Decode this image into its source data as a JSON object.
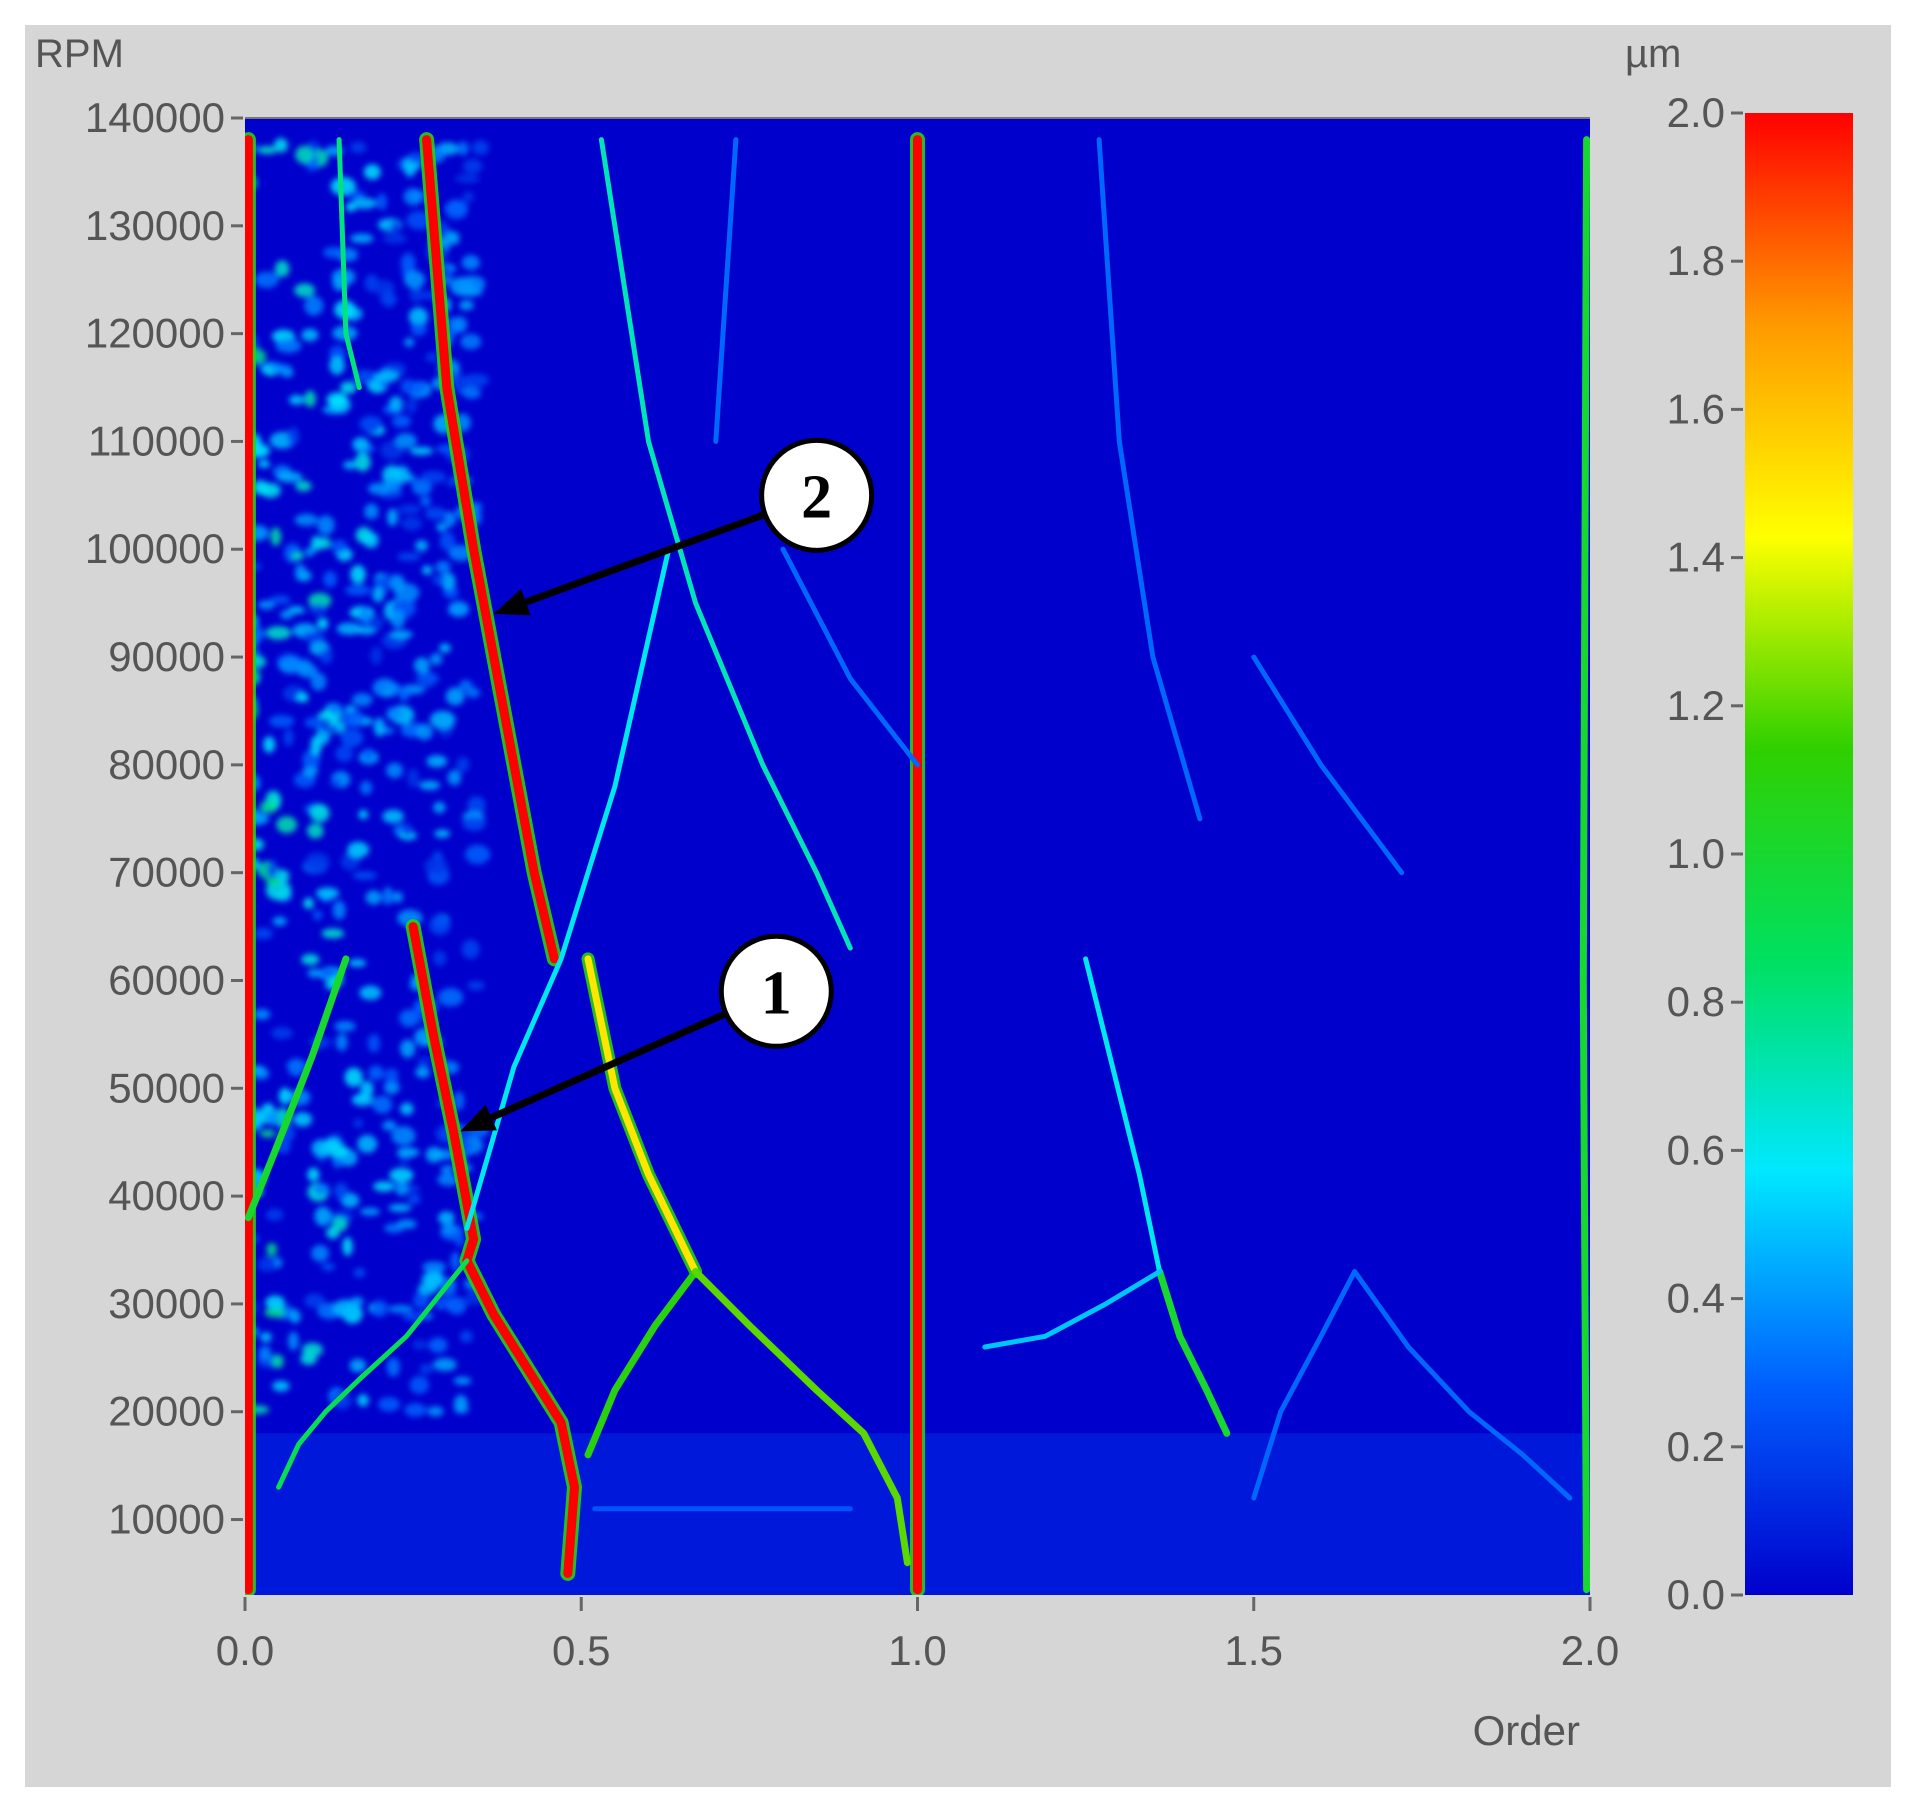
{
  "chart_data": {
    "type": "heatmap",
    "title": "",
    "xlabel": "Order",
    "ylabel": "RPM",
    "colorbar_label": "µm",
    "xlim": [
      0.0,
      2.0
    ],
    "ylim": [
      3000,
      140000
    ],
    "x_ticks": [
      "0.0",
      "0.5",
      "1.0",
      "1.5",
      "2.0"
    ],
    "x_tick_values": [
      0.0,
      0.5,
      1.0,
      1.5,
      2.0
    ],
    "y_ticks": [
      "140000",
      "130000",
      "120000",
      "110000",
      "100000",
      "90000",
      "80000",
      "70000",
      "60000",
      "50000",
      "40000",
      "30000",
      "20000",
      "10000"
    ],
    "y_tick_values": [
      140000,
      130000,
      120000,
      110000,
      100000,
      90000,
      80000,
      70000,
      60000,
      50000,
      40000,
      30000,
      20000,
      10000
    ],
    "colorbar": {
      "range": [
        0.0,
        2.0
      ],
      "ticks": [
        "2.0",
        "1.8",
        "1.6",
        "1.4",
        "1.2",
        "1.0",
        "0.8",
        "0.6",
        "0.4",
        "0.2",
        "0.0"
      ],
      "tick_values": [
        2.0,
        1.8,
        1.6,
        1.4,
        1.2,
        1.0,
        0.8,
        0.6,
        0.4,
        0.2,
        0.0
      ],
      "colors": [
        "#0000cc",
        "#0060ff",
        "#00e8ff",
        "#00e060",
        "#30d000",
        "#ffff00",
        "#ff9900",
        "#ff0000"
      ]
    },
    "background_level": 0.05,
    "traces": [
      {
        "points": [
          [
            0.005,
            3500
          ],
          [
            0.005,
            138000
          ]
        ],
        "level": 2.0
      },
      {
        "points": [
          [
            1.0,
            3500
          ],
          [
            1.0,
            138000
          ]
        ],
        "level": 2.0
      },
      {
        "points": [
          [
            1.995,
            3500
          ],
          [
            1.99,
            60000
          ],
          [
            1.995,
            138000
          ]
        ],
        "level": 1.0
      },
      {
        "points": [
          [
            0.27,
            138000
          ],
          [
            0.3,
            115000
          ],
          [
            0.34,
            100000
          ],
          [
            0.37,
            90000
          ],
          [
            0.4,
            80000
          ],
          [
            0.43,
            70000
          ],
          [
            0.46,
            62000
          ]
        ],
        "level": 2.0
      },
      {
        "points": [
          [
            0.25,
            65000
          ],
          [
            0.28,
            55000
          ],
          [
            0.31,
            46000
          ],
          [
            0.34,
            36000
          ],
          [
            0.33,
            34000
          ],
          [
            0.37,
            29000
          ],
          [
            0.42,
            24000
          ],
          [
            0.47,
            19000
          ],
          [
            0.49,
            13000
          ],
          [
            0.48,
            5000
          ]
        ],
        "level": 2.0
      },
      {
        "points": [
          [
            0.51,
            62000
          ],
          [
            0.55,
            50000
          ],
          [
            0.6,
            42000
          ],
          [
            0.67,
            33000
          ]
        ],
        "level": 1.5
      },
      {
        "points": [
          [
            0.33,
            34000
          ],
          [
            0.24,
            27000
          ],
          [
            0.17,
            23000
          ],
          [
            0.12,
            20000
          ],
          [
            0.08,
            17000
          ],
          [
            0.05,
            13000
          ]
        ],
        "level": 0.9
      },
      {
        "points": [
          [
            0.67,
            33000
          ],
          [
            0.61,
            28000
          ],
          [
            0.55,
            22000
          ],
          [
            0.51,
            16000
          ]
        ],
        "level": 1.1
      },
      {
        "points": [
          [
            0.67,
            33000
          ],
          [
            0.75,
            28000
          ],
          [
            0.85,
            22000
          ],
          [
            0.92,
            18000
          ],
          [
            0.97,
            12000
          ],
          [
            0.985,
            6000
          ]
        ],
        "level": 1.2
      },
      {
        "points": [
          [
            0.53,
            138000
          ],
          [
            0.6,
            110000
          ],
          [
            0.67,
            95000
          ],
          [
            0.77,
            80000
          ],
          [
            0.85,
            70000
          ],
          [
            0.9,
            63000
          ]
        ],
        "level": 0.7
      },
      {
        "points": [
          [
            0.33,
            37000
          ],
          [
            0.4,
            52000
          ],
          [
            0.47,
            62000
          ],
          [
            0.55,
            78000
          ],
          [
            0.63,
            100000
          ]
        ],
        "level": 0.6
      },
      {
        "points": [
          [
            0.005,
            38000
          ],
          [
            0.05,
            45000
          ],
          [
            0.1,
            53000
          ],
          [
            0.15,
            62000
          ]
        ],
        "level": 1.0
      },
      {
        "points": [
          [
            0.14,
            138000
          ],
          [
            0.15,
            120000
          ],
          [
            0.17,
            115000
          ]
        ],
        "level": 0.8
      },
      {
        "points": [
          [
            1.36,
            33000
          ],
          [
            1.39,
            27000
          ],
          [
            1.43,
            22000
          ],
          [
            1.46,
            18000
          ]
        ],
        "level": 1.0
      },
      {
        "points": [
          [
            1.25,
            62000
          ],
          [
            1.29,
            52000
          ],
          [
            1.33,
            42000
          ],
          [
            1.36,
            33000
          ]
        ],
        "level": 0.6
      },
      {
        "points": [
          [
            1.36,
            33000
          ],
          [
            1.28,
            30000
          ],
          [
            1.19,
            27000
          ],
          [
            1.1,
            26000
          ]
        ],
        "level": 0.5
      },
      {
        "points": [
          [
            1.65,
            33000
          ],
          [
            1.6,
            27000
          ],
          [
            1.54,
            20000
          ],
          [
            1.5,
            12000
          ]
        ],
        "level": 0.3
      },
      {
        "points": [
          [
            1.65,
            33000
          ],
          [
            1.73,
            26000
          ],
          [
            1.82,
            20000
          ],
          [
            1.9,
            16000
          ],
          [
            1.97,
            12000
          ]
        ],
        "level": 0.3
      },
      {
        "points": [
          [
            0.73,
            138000
          ],
          [
            0.7,
            110000
          ]
        ],
        "level": 0.3
      },
      {
        "points": [
          [
            1.27,
            138000
          ],
          [
            1.3,
            110000
          ]
        ],
        "level": 0.3
      },
      {
        "points": [
          [
            0.8,
            100000
          ],
          [
            0.9,
            88000
          ],
          [
            1.0,
            80000
          ]
        ],
        "level": 0.3
      },
      {
        "points": [
          [
            1.3,
            110000
          ],
          [
            1.35,
            90000
          ],
          [
            1.42,
            75000
          ]
        ],
        "level": 0.3
      },
      {
        "points": [
          [
            1.5,
            90000
          ],
          [
            1.6,
            80000
          ],
          [
            1.72,
            70000
          ]
        ],
        "level": 0.3
      },
      {
        "points": [
          [
            0.52,
            11000
          ],
          [
            0.7,
            11000
          ],
          [
            0.9,
            11000
          ]
        ],
        "level": 0.25
      }
    ],
    "speckle_region": {
      "x": [
        0.0,
        0.35
      ],
      "rpm": [
        20000,
        138000
      ],
      "level_max": 0.7
    }
  },
  "annotations": [
    {
      "label": "2",
      "target": {
        "order": 0.37,
        "rpm": 94000
      },
      "marker": {
        "order": 0.85,
        "rpm": 105000
      }
    },
    {
      "label": "1",
      "target": {
        "order": 0.32,
        "rpm": 46000
      },
      "marker": {
        "order": 0.79,
        "rpm": 59000
      }
    }
  ]
}
